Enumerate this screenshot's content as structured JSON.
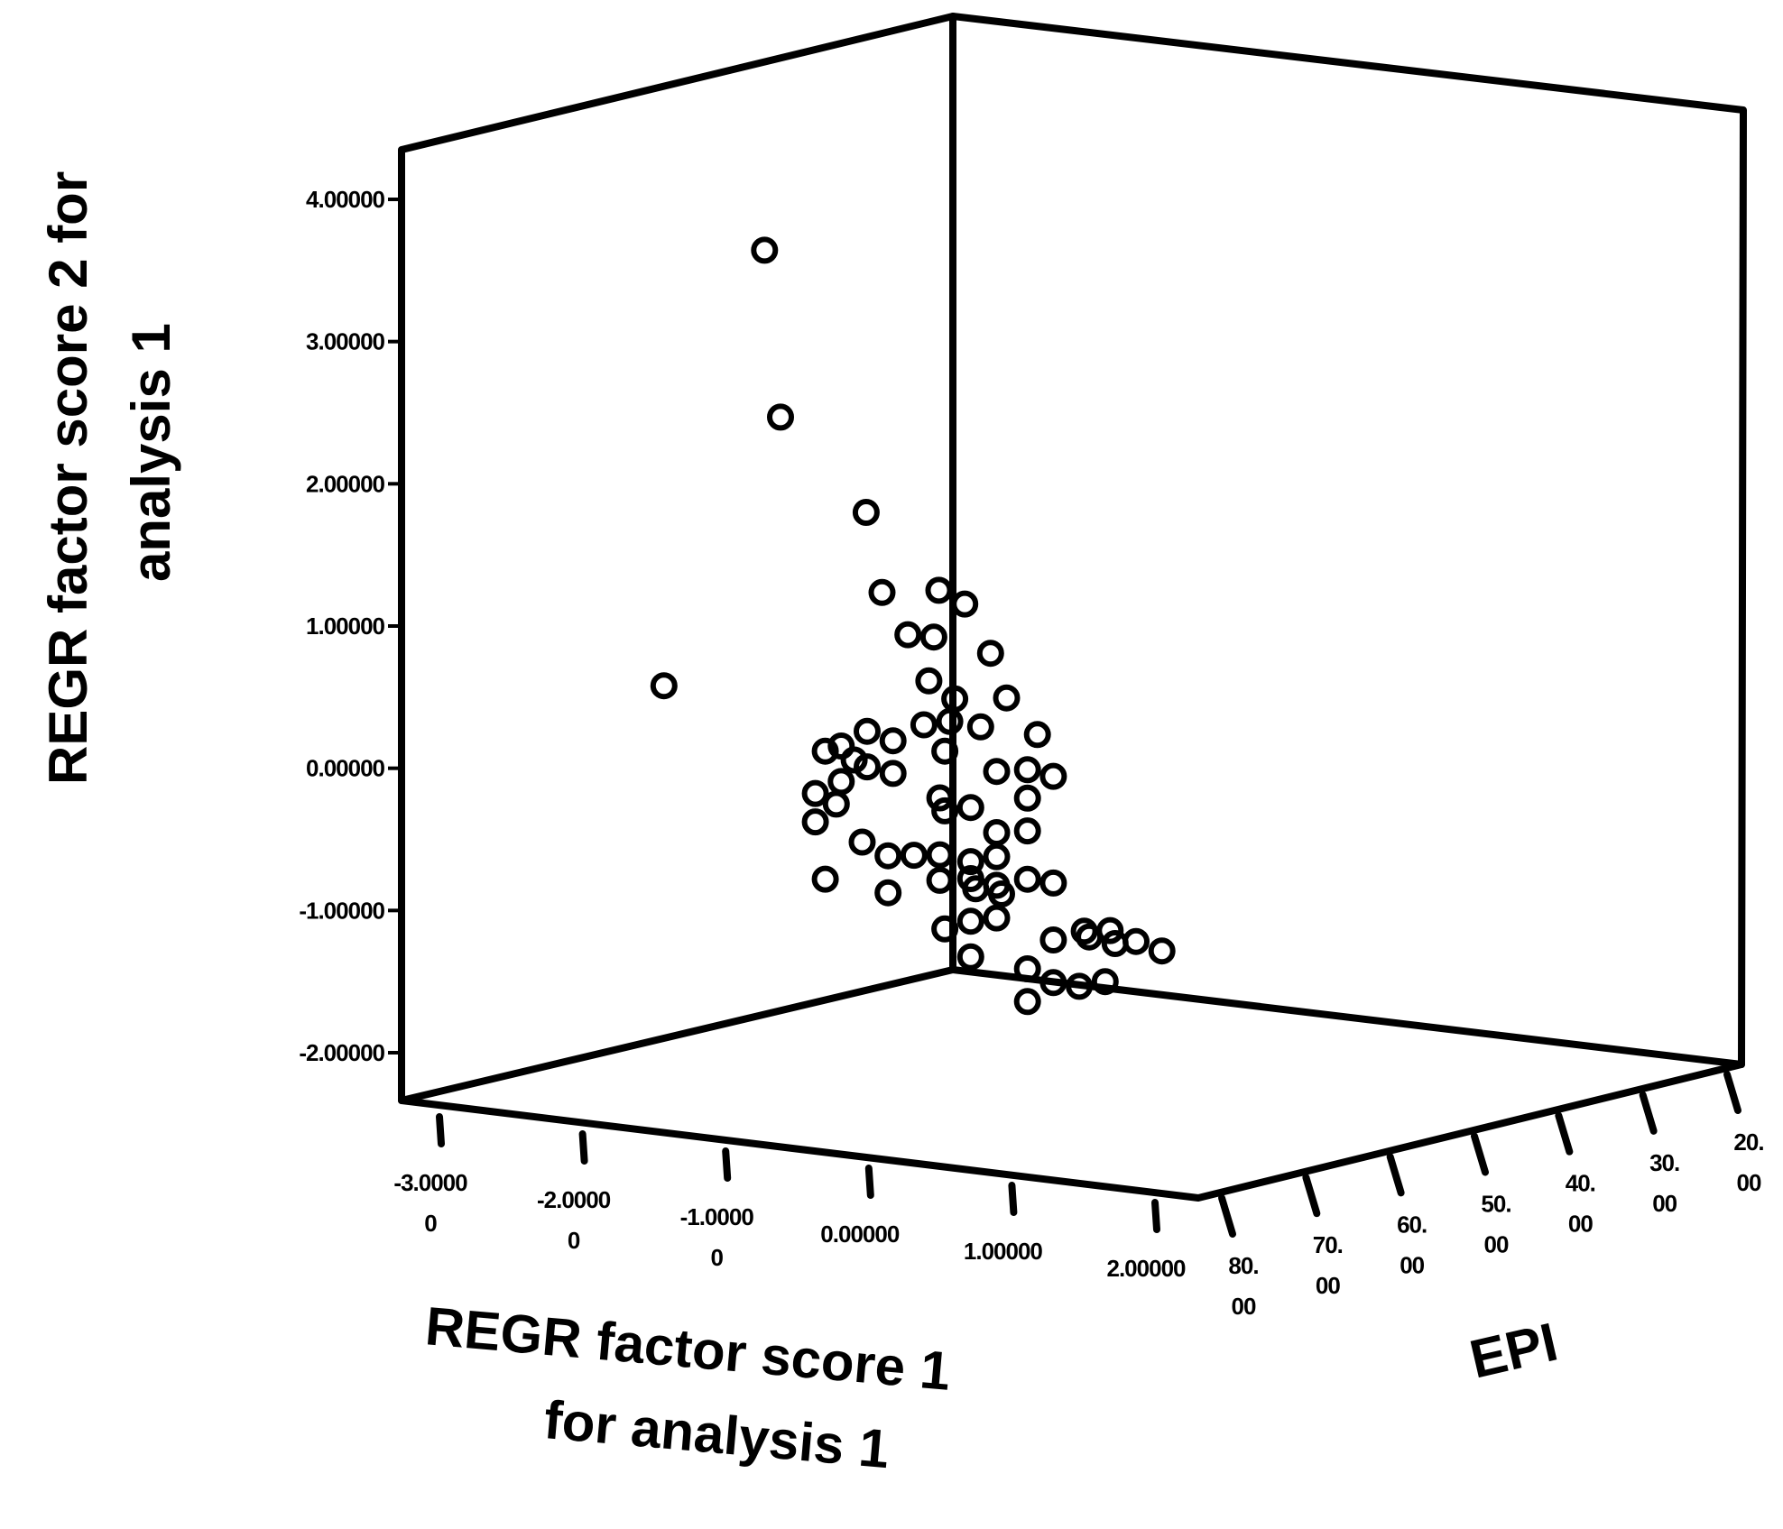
{
  "chart_data": {
    "type": "scatter",
    "title": "",
    "xlabel": [
      "REGR factor score   1",
      "for analysis 1"
    ],
    "ylabel": [
      "REGR factor score   2 for",
      "analysis 1"
    ],
    "zlabel": "EPI",
    "x_tick_labels": [
      [
        "-3.0000",
        "0"
      ],
      [
        "-2.0000",
        "0"
      ],
      [
        "-1.0000",
        "0"
      ],
      [
        "0.00000"
      ],
      [
        "1.00000"
      ],
      [
        "2.00000"
      ]
    ],
    "y_tick_labels": [
      "4.00000",
      "3.00000",
      "2.00000",
      "1.00000",
      "0.00000",
      "-1.00000",
      "-2.00000"
    ],
    "z_tick_labels": [
      [
        "80.",
        "00"
      ],
      [
        "70.",
        "00"
      ],
      [
        "60.",
        "00"
      ],
      [
        "50.",
        "00"
      ],
      [
        "40.",
        "00"
      ],
      [
        "30.",
        "00"
      ],
      [
        "20.",
        "00"
      ]
    ],
    "yticks": [
      4,
      3,
      2,
      1,
      0,
      -1,
      -2
    ],
    "ylim": [
      -2,
      4
    ],
    "xlim": [
      -3,
      2
    ],
    "zlim": [
      20,
      80
    ],
    "grid": false,
    "legend": "none",
    "points": [
      {
        "x": -0.4,
        "y": 3.78,
        "z": 45
      },
      {
        "x": -0.3,
        "y": 2.62,
        "z": 45
      },
      {
        "x": -0.5,
        "y": 0.85,
        "z": 62
      },
      {
        "x": 0.3,
        "y": 2.05,
        "z": 47
      },
      {
        "x": 0.4,
        "y": 1.5,
        "z": 47
      },
      {
        "x": 0.2,
        "y": 0.4,
        "z": 52
      },
      {
        "x": 0.2,
        "y": -0.5,
        "z": 52
      },
      {
        "x": 0.6,
        "y": 1.5,
        "z": 42
      },
      {
        "x": 0.7,
        "y": 1.4,
        "z": 40
      },
      {
        "x": 0.5,
        "y": 1.2,
        "z": 45
      },
      {
        "x": 0.6,
        "y": 1.18,
        "z": 43
      },
      {
        "x": 0.8,
        "y": 1.05,
        "z": 38
      },
      {
        "x": 0.6,
        "y": 0.88,
        "z": 44
      },
      {
        "x": 0.7,
        "y": 0.75,
        "z": 42
      },
      {
        "x": 0.9,
        "y": 0.75,
        "z": 38
      },
      {
        "x": 0.6,
        "y": 0.58,
        "z": 45
      },
      {
        "x": 0.7,
        "y": 0.6,
        "z": 43
      },
      {
        "x": 0.8,
        "y": 0.55,
        "z": 40
      },
      {
        "x": 1.0,
        "y": 0.48,
        "z": 35
      },
      {
        "x": 0.4,
        "y": 0.55,
        "z": 50
      },
      {
        "x": 0.5,
        "y": 0.48,
        "z": 48
      },
      {
        "x": 0.3,
        "y": 0.45,
        "z": 52
      },
      {
        "x": 0.35,
        "y": 0.35,
        "z": 51
      },
      {
        "x": 0.4,
        "y": 0.3,
        "z": 50
      },
      {
        "x": 0.7,
        "y": 0.4,
        "z": 44
      },
      {
        "x": 0.9,
        "y": 0.25,
        "z": 40
      },
      {
        "x": 1.0,
        "y": 0.25,
        "z": 37
      },
      {
        "x": 1.1,
        "y": 0.2,
        "z": 35
      },
      {
        "x": 0.5,
        "y": 0.25,
        "z": 48
      },
      {
        "x": 0.3,
        "y": 0.2,
        "z": 52
      },
      {
        "x": 0.2,
        "y": 0.12,
        "z": 54
      },
      {
        "x": 0.3,
        "y": 0.05,
        "z": 53
      },
      {
        "x": 0.7,
        "y": 0.08,
        "z": 45
      },
      {
        "x": 0.8,
        "y": 0.0,
        "z": 42
      },
      {
        "x": 0.7,
        "y": -0.02,
        "z": 44
      },
      {
        "x": 1.0,
        "y": 0.05,
        "z": 37
      },
      {
        "x": 1.0,
        "y": -0.18,
        "z": 37
      },
      {
        "x": 0.9,
        "y": -0.18,
        "z": 40
      },
      {
        "x": 0.2,
        "y": -0.08,
        "z": 54
      },
      {
        "x": 0.4,
        "y": -0.22,
        "z": 51
      },
      {
        "x": 0.5,
        "y": -0.32,
        "z": 49
      },
      {
        "x": 0.6,
        "y": -0.32,
        "z": 47
      },
      {
        "x": 0.7,
        "y": -0.32,
        "z": 45
      },
      {
        "x": 0.8,
        "y": -0.38,
        "z": 42
      },
      {
        "x": 0.9,
        "y": -0.35,
        "z": 40
      },
      {
        "x": 0.7,
        "y": -0.5,
        "z": 45
      },
      {
        "x": 0.8,
        "y": -0.5,
        "z": 42
      },
      {
        "x": 0.9,
        "y": -0.55,
        "z": 40
      },
      {
        "x": 0.8,
        "y": -0.58,
        "z": 41
      },
      {
        "x": 0.9,
        "y": -0.62,
        "z": 39
      },
      {
        "x": 1.0,
        "y": -0.52,
        "z": 37
      },
      {
        "x": 1.1,
        "y": -0.55,
        "z": 35
      },
      {
        "x": 0.5,
        "y": -0.58,
        "z": 49
      },
      {
        "x": 0.8,
        "y": -0.8,
        "z": 42
      },
      {
        "x": 0.9,
        "y": -0.78,
        "z": 40
      },
      {
        "x": 0.7,
        "y": -0.85,
        "z": 44
      },
      {
        "x": 0.8,
        "y": -1.05,
        "z": 42
      },
      {
        "x": 1.1,
        "y": -0.95,
        "z": 35
      },
      {
        "x": 1.2,
        "y": -0.9,
        "z": 32
      },
      {
        "x": 1.3,
        "y": -0.9,
        "z": 30
      },
      {
        "x": 1.2,
        "y": -0.95,
        "z": 31
      },
      {
        "x": 1.3,
        "y": -1.0,
        "z": 29
      },
      {
        "x": 1.4,
        "y": -0.98,
        "z": 28
      },
      {
        "x": 1.5,
        "y": -1.05,
        "z": 26
      },
      {
        "x": 1.0,
        "y": -1.15,
        "z": 37
      },
      {
        "x": 1.1,
        "y": -1.25,
        "z": 35
      },
      {
        "x": 1.2,
        "y": -1.28,
        "z": 33
      },
      {
        "x": 1.3,
        "y": -1.25,
        "z": 31
      },
      {
        "x": 1.0,
        "y": -1.38,
        "z": 37
      }
    ]
  }
}
